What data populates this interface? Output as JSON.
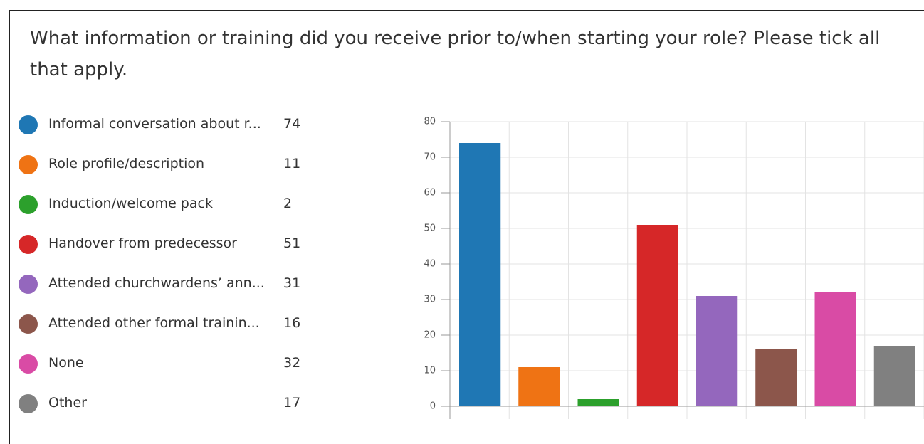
{
  "chart_data": {
    "type": "bar",
    "title": "What information or training did you receive prior to/when starting your role? Please tick all that apply.",
    "categories": [
      "Informal conversation about r...",
      "Role profile/description",
      "Induction/welcome pack",
      "Handover from predecessor",
      "Attended churchwardens’ ann...",
      "Attended other formal trainin...",
      "None",
      "Other"
    ],
    "values": [
      74,
      11,
      2,
      51,
      31,
      16,
      32,
      17
    ],
    "colors": [
      "#1f77b4",
      "#ef7314",
      "#2ca02c",
      "#d62728",
      "#9467bd",
      "#8c564b",
      "#d94ba5",
      "#808080"
    ],
    "ylim": [
      0,
      80
    ],
    "yticks": [
      0,
      10,
      20,
      30,
      40,
      50,
      60,
      70,
      80
    ],
    "grid": true
  }
}
